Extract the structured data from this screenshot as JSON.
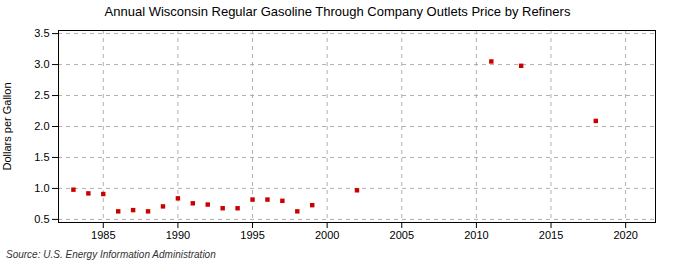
{
  "chart_data": {
    "type": "scatter",
    "title": "Annual Wisconsin Regular Gasoline Through Company Outlets Price by Refiners",
    "ylabel": "Dollars per Gallon",
    "source": "Source: U.S. Energy Information Administration",
    "x": [
      1983,
      1984,
      1985,
      1986,
      1987,
      1988,
      1989,
      1990,
      1991,
      1992,
      1993,
      1994,
      1995,
      1996,
      1997,
      1998,
      1999,
      2002,
      2011,
      2013,
      2018
    ],
    "values": [
      0.98,
      0.92,
      0.91,
      0.63,
      0.65,
      0.63,
      0.71,
      0.84,
      0.76,
      0.74,
      0.68,
      0.68,
      0.82,
      0.82,
      0.8,
      0.63,
      0.73,
      0.97,
      3.05,
      2.98,
      2.09
    ],
    "color": "#cc0000",
    "marker": "square",
    "xlim": [
      1982,
      2022
    ],
    "ylim": [
      0.45,
      3.55
    ],
    "xticks": [
      1985,
      1990,
      1995,
      2000,
      2005,
      2010,
      2015,
      2020
    ],
    "yticks": [
      0.5,
      {
        "value": 1.0,
        "label": "1.0"
      },
      1.5,
      {
        "value": 2.0,
        "label": "2.0"
      },
      2.5,
      {
        "value": 3.0,
        "label": "3.0"
      },
      3.5
    ],
    "grid": true
  }
}
